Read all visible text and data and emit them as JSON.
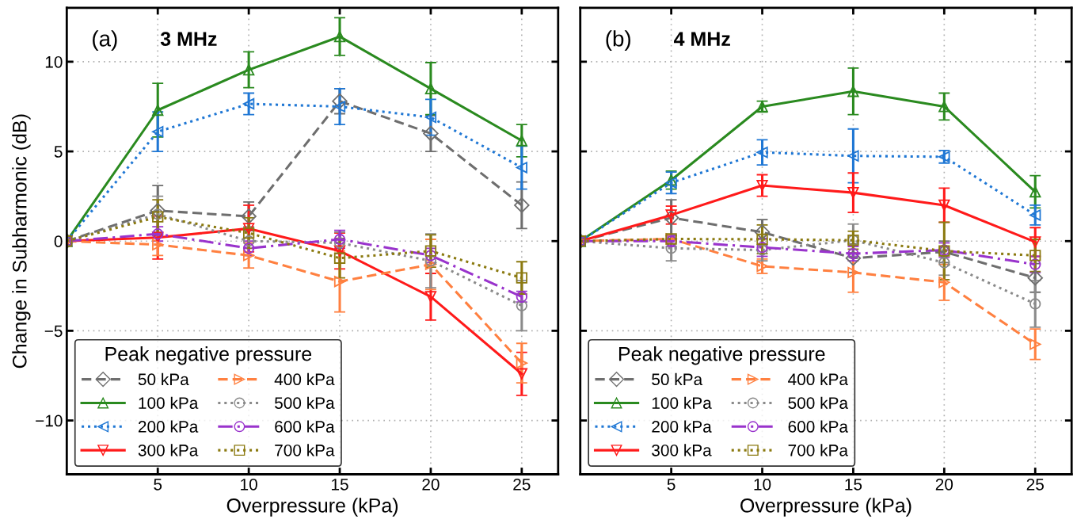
{
  "chart_data": [
    {
      "type": "line",
      "title": "3 MHz",
      "annotations": [
        "(a)"
      ],
      "xlabel": "Overpressure (kPa)",
      "ylabel": "Change in Subharmonic (dB)",
      "legend_title": "Peak negative pressure",
      "legend": "bottom left",
      "grid": true,
      "x": [
        0,
        5,
        10,
        15,
        20,
        25
      ],
      "xlim": [
        0,
        27
      ],
      "xticks": [
        5,
        10,
        15,
        20,
        25
      ],
      "ylim": [
        -13,
        13
      ],
      "yticks": [
        {
          "value": -10,
          "label": "−10"
        },
        {
          "value": -5,
          "label": "−5"
        },
        0,
        5,
        10
      ],
      "series": [
        {
          "name": "50 kPa",
          "color": "#6e6e6e",
          "marker": "diamond",
          "line_style": "dashed",
          "values": [
            0,
            1.7,
            1.38,
            7.8,
            6.0,
            2.0
          ],
          "errors": [
            null,
            1.4,
            0.8,
            0.7,
            1.0,
            1.3
          ]
        },
        {
          "name": "100 kPa",
          "color": "#2a8a1f",
          "marker": "triangle",
          "line_style": "solid",
          "values": [
            0,
            7.3,
            9.55,
            11.4,
            8.5,
            5.6
          ],
          "errors": [
            null,
            1.5,
            1.0,
            1.05,
            1.45,
            0.9
          ]
        },
        {
          "name": "200 kPa",
          "color": "#1f77d4",
          "marker": "triangle-left",
          "line_style": "dotted",
          "values": [
            0,
            6.1,
            7.65,
            7.5,
            6.9,
            4.1
          ],
          "errors": [
            null,
            1.1,
            0.6,
            1.0,
            1.0,
            1.2
          ]
        },
        {
          "name": "300 kPa",
          "color": "#ff1a1a",
          "marker": "triangle-down",
          "line_style": "solid",
          "values": [
            0,
            0.2,
            0.7,
            -0.55,
            -3.1,
            -7.4
          ],
          "errors": [
            null,
            1.2,
            1.3,
            1.0,
            1.3,
            1.2
          ]
        },
        {
          "name": "400 kPa",
          "color": "#ff8040",
          "marker": "triangle-right",
          "line_style": "dashed",
          "values": [
            0,
            -0.2,
            -0.8,
            -2.25,
            -1.3,
            -6.8
          ],
          "errors": [
            null,
            0.6,
            0.7,
            1.7,
            1.4,
            1.1
          ]
        },
        {
          "name": "500 kPa",
          "color": "#8a8a8a",
          "marker": "circle",
          "line_style": "dotted",
          "values": [
            0,
            1.5,
            0,
            -0.1,
            -1.1,
            -3.6
          ],
          "errors": [
            null,
            1.0,
            0.8,
            0.6,
            1.5,
            1.4
          ]
        },
        {
          "name": "600 kPa",
          "color": "#9933cc",
          "marker": "circle",
          "line_style": "dashdot",
          "values": [
            0,
            0.4,
            -0.4,
            0.1,
            -0.8,
            -3.1
          ],
          "errors": [
            null,
            0.4,
            0.4,
            0.5,
            0.4,
            0.3
          ]
        },
        {
          "name": "700 kPa",
          "color": "#8b7a10",
          "marker": "square",
          "line_style": "dotted",
          "values": [
            0,
            1.35,
            0.45,
            -0.95,
            -0.55,
            -2.05
          ],
          "errors": [
            null,
            0.95,
            0.85,
            1.1,
            0.9,
            0.9
          ]
        }
      ]
    },
    {
      "type": "line",
      "title": "4 MHz",
      "annotations": [
        "(b)"
      ],
      "xlabel": "Overpressure (kPa)",
      "legend_title": "Peak negative pressure",
      "legend": "bottom left",
      "grid": true,
      "tick_labels": "x",
      "x": [
        0,
        5,
        10,
        15,
        20,
        25
      ],
      "xlim": [
        0,
        27
      ],
      "xticks": [
        5,
        10,
        15,
        20,
        25
      ],
      "ylim": [
        -13,
        13
      ],
      "yticks": [
        -10,
        -5,
        0,
        5,
        10
      ],
      "series": [
        {
          "name": "50 kPa",
          "color": "#6e6e6e",
          "marker": "diamond",
          "line_style": "dashed",
          "values": [
            0,
            1.3,
            0.5,
            -0.95,
            -0.6,
            -2.05
          ],
          "errors": [
            null,
            1.0,
            0.7,
            0.8,
            0.6,
            0.8
          ]
        },
        {
          "name": "100 kPa",
          "color": "#2a8a1f",
          "marker": "triangle",
          "line_style": "solid",
          "values": [
            0,
            3.4,
            7.5,
            8.35,
            7.5,
            2.75
          ],
          "errors": [
            null,
            0.5,
            0.3,
            1.3,
            0.75,
            0.9
          ]
        },
        {
          "name": "200 kPa",
          "color": "#1f77d4",
          "marker": "triangle-left",
          "line_style": "dotted",
          "values": [
            0,
            3.25,
            4.95,
            4.75,
            4.7,
            1.45
          ],
          "errors": [
            null,
            0.6,
            0.7,
            1.5,
            0.35,
            0.55
          ]
        },
        {
          "name": "300 kPa",
          "color": "#ff1a1a",
          "marker": "triangle-down",
          "line_style": "solid",
          "values": [
            0,
            1.45,
            3.1,
            2.7,
            2.0,
            -0.05
          ],
          "errors": [
            null,
            0.5,
            0.6,
            1.1,
            0.95,
            0.8
          ]
        },
        {
          "name": "400 kPa",
          "color": "#ff8040",
          "marker": "triangle-right",
          "line_style": "dashed",
          "values": [
            0,
            0.12,
            -1.4,
            -1.75,
            -2.3,
            -5.75
          ],
          "errors": [
            null,
            null,
            0.4,
            1.1,
            1.0,
            0.85
          ]
        },
        {
          "name": "500 kPa",
          "color": "#8a8a8a",
          "marker": "circle",
          "line_style": "dotted",
          "values": [
            0,
            -0.4,
            -0.5,
            0.05,
            -1.2,
            -3.5
          ],
          "errors": [
            null,
            0.7,
            0.6,
            0.9,
            0.7,
            1.3
          ]
        },
        {
          "name": "600 kPa",
          "color": "#9933cc",
          "marker": "circle",
          "line_style": "dashdot",
          "values": [
            0,
            0,
            -0.35,
            -0.7,
            -0.5,
            -1.3
          ],
          "errors": [
            null,
            0.3,
            0.5,
            0.4,
            0.4,
            0.45
          ]
        },
        {
          "name": "700 kPa",
          "color": "#8b7a10",
          "marker": "square",
          "line_style": "dotted",
          "values": [
            0,
            0.12,
            0.1,
            0.05,
            -0.55,
            -0.8
          ],
          "errors": [
            null,
            null,
            0.8,
            0.5,
            1.6,
            0.9
          ]
        }
      ]
    }
  ]
}
